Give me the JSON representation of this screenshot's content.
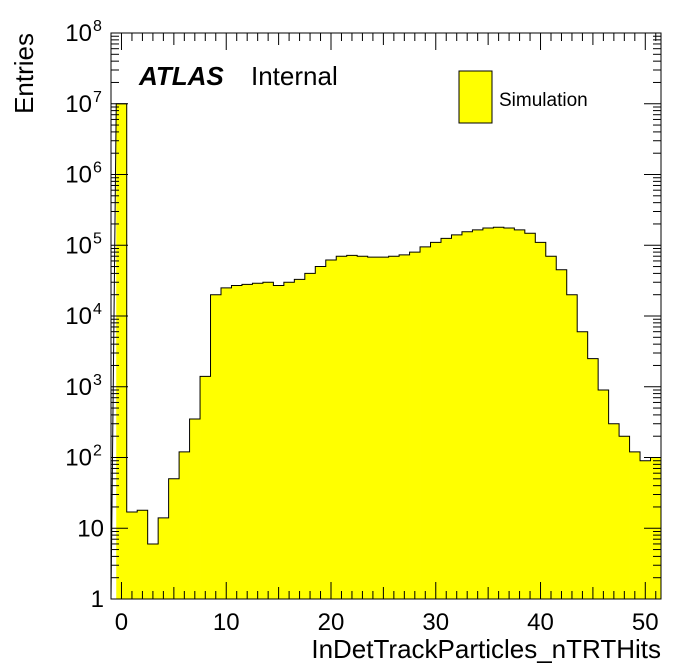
{
  "chart_data": {
    "type": "bar",
    "histogram": true,
    "xlabel": "InDetTrackParticles_nTRTHits",
    "ylabel": "Entries",
    "xlim": [
      -1,
      51.5
    ],
    "ylim": [
      1,
      100000000
    ],
    "yscale": "log",
    "bin_edges_start": -0.5,
    "bin_width": 1,
    "x_ticks": [
      {
        "value": 0,
        "label": "0"
      },
      {
        "value": 10,
        "label": "10"
      },
      {
        "value": 20,
        "label": "20"
      },
      {
        "value": 30,
        "label": "30"
      },
      {
        "value": 40,
        "label": "40"
      },
      {
        "value": 50,
        "label": "50"
      }
    ],
    "y_ticks": [
      {
        "value": 1,
        "base": "1",
        "exp": ""
      },
      {
        "value": 10,
        "base": "10",
        "exp": ""
      },
      {
        "value": 100,
        "base": "10",
        "exp": "2"
      },
      {
        "value": 1000,
        "base": "10",
        "exp": "3"
      },
      {
        "value": 10000,
        "base": "10",
        "exp": "4"
      },
      {
        "value": 100000,
        "base": "10",
        "exp": "5"
      },
      {
        "value": 1000000,
        "base": "10",
        "exp": "6"
      },
      {
        "value": 10000000,
        "base": "10",
        "exp": "7"
      },
      {
        "value": 100000000,
        "base": "10",
        "exp": "8"
      }
    ],
    "series": [
      {
        "name": "Simulation",
        "color": "#ffff00",
        "values": [
          10000000,
          17,
          18,
          6,
          14,
          50,
          120,
          350,
          1400,
          20000,
          25000,
          27000,
          28000,
          29000,
          30000,
          27000,
          30000,
          33000,
          40000,
          50000,
          62000,
          70000,
          72000,
          70000,
          68000,
          68000,
          70000,
          73000,
          80000,
          95000,
          110000,
          125000,
          140000,
          155000,
          165000,
          175000,
          180000,
          175000,
          165000,
          148000,
          110000,
          70000,
          45000,
          20000,
          6000,
          2500,
          900,
          300,
          200,
          120,
          90,
          100
        ]
      }
    ],
    "legend": {
      "position": "top-right",
      "entries": [
        "Simulation"
      ]
    }
  },
  "annotation": {
    "atlas": "ATLAS",
    "status": "Internal"
  }
}
